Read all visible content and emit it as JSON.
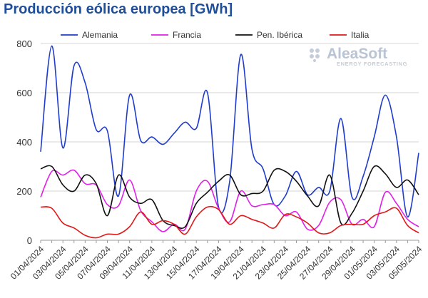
{
  "title": "Producción eólica europea [GWh]",
  "logo": {
    "name": "AleaSoft",
    "tagline": "ENERGY FORECASTING"
  },
  "chart_data": {
    "type": "line",
    "title": "Producción eólica europea [GWh]",
    "xlabel": "",
    "ylabel": "",
    "ylim": [
      0,
      800
    ],
    "yticks": [
      0,
      200,
      400,
      600,
      800
    ],
    "grid": "horizontal",
    "legend_position": "top",
    "x": [
      "01/04/2024",
      "02/04/2024",
      "03/04/2024",
      "04/04/2024",
      "05/04/2024",
      "06/04/2024",
      "07/04/2024",
      "08/04/2024",
      "09/04/2024",
      "10/04/2024",
      "11/04/2024",
      "12/04/2024",
      "13/04/2024",
      "14/04/2024",
      "15/04/2024",
      "16/04/2024",
      "17/04/2024",
      "18/04/2024",
      "19/04/2024",
      "20/04/2024",
      "21/04/2024",
      "22/04/2024",
      "23/04/2024",
      "24/04/2024",
      "25/04/2024",
      "26/04/2024",
      "27/04/2024",
      "28/04/2024",
      "29/04/2024",
      "30/04/2024",
      "01/05/2024",
      "02/05/2024",
      "03/05/2024",
      "04/05/2024",
      "05/05/2024"
    ],
    "x_tick_labels": [
      "01/04/2024",
      "03/04/2024",
      "05/04/2024",
      "07/04/2024",
      "09/04/2024",
      "11/04/2024",
      "13/04/2024",
      "15/04/2024",
      "17/04/2024",
      "19/04/2024",
      "21/04/2024",
      "23/04/2024",
      "25/04/2024",
      "27/04/2024",
      "29/04/2024",
      "01/05/2024",
      "03/05/2024",
      "05/05/2024"
    ],
    "series": [
      {
        "name": "Alemania",
        "color": "#1f3ccc",
        "values": [
          360,
          790,
          375,
          710,
          640,
          450,
          445,
          180,
          590,
          405,
          420,
          390,
          435,
          480,
          455,
          600,
          135,
          240,
          755,
          370,
          290,
          145,
          180,
          280,
          185,
          215,
          200,
          495,
          175,
          260,
          420,
          590,
          420,
          95,
          355
        ]
      },
      {
        "name": "Francia",
        "color": "#e020e8",
        "values": [
          175,
          280,
          265,
          285,
          230,
          225,
          145,
          140,
          245,
          120,
          75,
          35,
          65,
          45,
          200,
          240,
          130,
          75,
          200,
          140,
          145,
          145,
          100,
          115,
          45,
          60,
          155,
          165,
          65,
          85,
          55,
          195,
          150,
          85,
          55
        ]
      },
      {
        "name": "Pen. Ibérica",
        "color": "#111111",
        "values": [
          290,
          300,
          225,
          200,
          265,
          230,
          100,
          265,
          175,
          150,
          165,
          80,
          60,
          55,
          150,
          195,
          240,
          265,
          185,
          190,
          200,
          285,
          280,
          240,
          180,
          140,
          265,
          70,
          110,
          200,
          300,
          270,
          215,
          245,
          185
        ]
      },
      {
        "name": "Italia",
        "color": "#e01818",
        "values": [
          135,
          130,
          70,
          50,
          20,
          10,
          25,
          25,
          55,
          115,
          65,
          80,
          65,
          25,
          95,
          135,
          125,
          65,
          100,
          85,
          70,
          50,
          105,
          95,
          70,
          30,
          30,
          60,
          65,
          65,
          100,
          115,
          130,
          60,
          30
        ]
      }
    ]
  }
}
